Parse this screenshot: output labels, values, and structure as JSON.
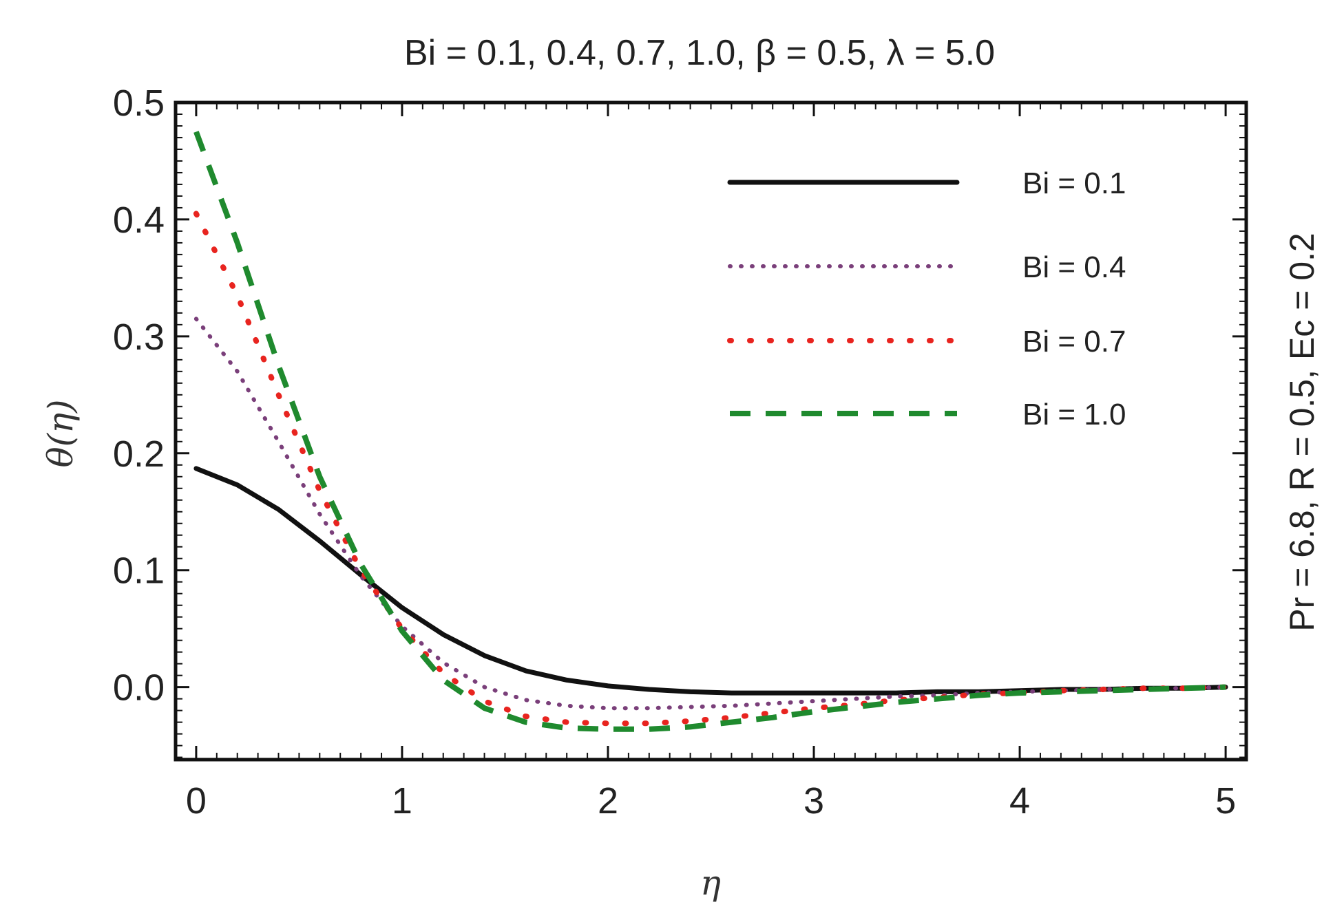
{
  "chart_data": {
    "type": "line",
    "title": "Bi = 0.1, 0.4, 0.7, 1.0, β = 0.5, λ = 5.0",
    "xlabel": "η",
    "ylabel": "θ(η)",
    "side_annotation": "Pr = 6.8, R = 0.5, Ec = 0.2",
    "xlim": [
      -0.1,
      5.1
    ],
    "ylim": [
      -0.062,
      0.5
    ],
    "x_ticks": [
      0,
      1,
      2,
      3,
      4,
      5
    ],
    "y_ticks": [
      0.0,
      0.1,
      0.2,
      0.3,
      0.4,
      0.5
    ],
    "y_tick_labels": [
      "0.0",
      "0.1",
      "0.2",
      "0.3",
      "0.4",
      "0.5"
    ],
    "legend_position": "top-right",
    "grid": false,
    "series": [
      {
        "name": "Bi = 0.1",
        "color": "#111111",
        "style": "solid",
        "x": [
          0,
          0.2,
          0.4,
          0.6,
          0.8,
          1.0,
          1.2,
          1.4,
          1.6,
          1.8,
          2.0,
          2.2,
          2.4,
          2.6,
          2.8,
          3.0,
          3.2,
          3.4,
          3.6,
          3.8,
          4.0,
          4.2,
          4.4,
          4.6,
          4.8,
          5.0
        ],
        "y": [
          0.187,
          0.173,
          0.152,
          0.125,
          0.096,
          0.068,
          0.045,
          0.027,
          0.014,
          0.006,
          0.001,
          -0.002,
          -0.004,
          -0.005,
          -0.005,
          -0.005,
          -0.005,
          -0.005,
          -0.004,
          -0.004,
          -0.003,
          -0.002,
          -0.002,
          -0.001,
          -0.001,
          0.0
        ]
      },
      {
        "name": "Bi = 0.4",
        "color": "#7a3f7a",
        "style": "dotted",
        "x": [
          0,
          0.2,
          0.4,
          0.6,
          0.8,
          1.0,
          1.2,
          1.4,
          1.6,
          1.8,
          2.0,
          2.2,
          2.4,
          2.6,
          2.8,
          3.0,
          3.2,
          3.4,
          3.6,
          3.8,
          4.0,
          4.2,
          4.4,
          4.6,
          4.8,
          5.0
        ],
        "y": [
          0.315,
          0.27,
          0.21,
          0.148,
          0.095,
          0.052,
          0.021,
          0.0,
          -0.011,
          -0.016,
          -0.018,
          -0.018,
          -0.017,
          -0.016,
          -0.014,
          -0.012,
          -0.01,
          -0.008,
          -0.007,
          -0.005,
          -0.004,
          -0.003,
          -0.002,
          -0.001,
          -0.001,
          0.0
        ]
      },
      {
        "name": "Bi = 0.7",
        "color": "#e8241f",
        "style": "dotted-sparse",
        "x": [
          0,
          0.2,
          0.4,
          0.6,
          0.8,
          1.0,
          1.2,
          1.4,
          1.6,
          1.8,
          2.0,
          2.2,
          2.4,
          2.6,
          2.8,
          3.0,
          3.2,
          3.4,
          3.6,
          3.8,
          4.0,
          4.2,
          4.4,
          4.6,
          4.8,
          5.0
        ],
        "y": [
          0.405,
          0.335,
          0.25,
          0.168,
          0.1,
          0.05,
          0.012,
          -0.012,
          -0.025,
          -0.03,
          -0.031,
          -0.031,
          -0.029,
          -0.026,
          -0.022,
          -0.018,
          -0.015,
          -0.011,
          -0.009,
          -0.006,
          -0.005,
          -0.003,
          -0.002,
          -0.001,
          -0.001,
          0.0
        ]
      },
      {
        "name": "Bi = 1.0",
        "color": "#1f8a2e",
        "style": "dashed",
        "x": [
          0,
          0.2,
          0.4,
          0.6,
          0.8,
          1.0,
          1.2,
          1.4,
          1.6,
          1.8,
          2.0,
          2.2,
          2.4,
          2.6,
          2.8,
          3.0,
          3.2,
          3.4,
          3.6,
          3.8,
          4.0,
          4.2,
          4.4,
          4.6,
          4.8,
          5.0
        ],
        "y": [
          0.475,
          0.38,
          0.275,
          0.18,
          0.105,
          0.048,
          0.006,
          -0.018,
          -0.03,
          -0.035,
          -0.036,
          -0.036,
          -0.034,
          -0.03,
          -0.026,
          -0.021,
          -0.017,
          -0.013,
          -0.01,
          -0.007,
          -0.005,
          -0.004,
          -0.003,
          -0.002,
          -0.001,
          0.0
        ]
      }
    ]
  }
}
